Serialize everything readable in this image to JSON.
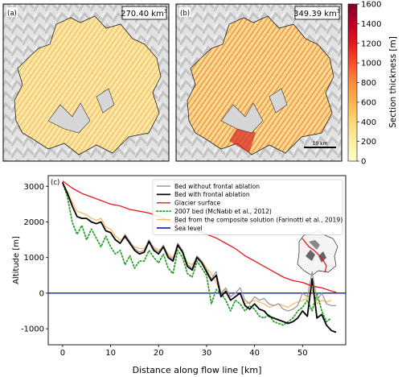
{
  "colorbar": {
    "label": "Section thickness [m]",
    "ticks": [
      0,
      200,
      400,
      600,
      800,
      1000,
      1200,
      1400,
      1600
    ],
    "range": [
      0,
      1600
    ],
    "colors": [
      "#ffffcc",
      "#ffeda0",
      "#fed976",
      "#feb24c",
      "#fd8d3c",
      "#fc4e2a",
      "#e31a1c",
      "#bd0026",
      "#800026"
    ]
  },
  "maps": [
    {
      "panel": "(a)",
      "volume": "270.40 km",
      "volume_sup": "3",
      "mean_thickness_shown": 400
    },
    {
      "panel": "(b)",
      "volume": "349.39 km",
      "volume_sup": "3",
      "mean_thickness_shown": 600,
      "scalebar": "10 km"
    }
  ],
  "chart_data": {
    "type": "line",
    "panel": "(c)",
    "xlabel": "Distance along flow line [km]",
    "ylabel": "Altitude [m]",
    "xlim": [
      -3,
      59
    ],
    "ylim": [
      -1450,
      3300
    ],
    "xticks": [
      0,
      10,
      20,
      30,
      40,
      50
    ],
    "yticks": [
      -1000,
      0,
      1000,
      2000,
      3000
    ],
    "legend_position": "top-center",
    "series": [
      {
        "name": "Bed without frontal ablation",
        "color": "#999999",
        "style": "solid",
        "x": [
          0,
          1,
          2,
          3,
          4,
          5,
          6,
          7,
          8,
          9,
          10,
          11,
          12,
          13,
          14,
          15,
          16,
          17,
          18,
          19,
          20,
          21,
          22,
          23,
          24,
          25,
          26,
          27,
          28,
          29,
          30,
          31,
          32,
          33,
          34,
          35,
          36,
          37,
          38,
          39,
          40,
          41,
          42,
          43,
          44,
          45,
          46,
          47,
          48,
          49,
          50,
          51,
          52,
          53,
          54,
          55,
          56,
          57
        ],
        "y": [
          3100,
          2800,
          2450,
          2150,
          2100,
          2100,
          2000,
          1950,
          2000,
          1750,
          1700,
          1500,
          1400,
          1650,
          1450,
          1250,
          1150,
          1200,
          1500,
          1250,
          1150,
          1350,
          1050,
          950,
          1400,
          1200,
          800,
          700,
          1050,
          900,
          650,
          400,
          600,
          0,
          150,
          -100,
          0,
          150,
          -200,
          -300,
          -100,
          -200,
          -150,
          -300,
          -350,
          -300,
          -450,
          -500,
          -450,
          -350,
          0,
          -100,
          600,
          -200,
          0,
          -300,
          -350,
          -350
        ]
      },
      {
        "name": "Bed with frontal ablation",
        "color": "#000000",
        "style": "solid",
        "x": [
          0,
          1,
          2,
          3,
          4,
          5,
          6,
          7,
          8,
          9,
          10,
          11,
          12,
          13,
          14,
          15,
          16,
          17,
          18,
          19,
          20,
          21,
          22,
          23,
          24,
          25,
          26,
          27,
          28,
          29,
          30,
          31,
          32,
          33,
          34,
          35,
          36,
          37,
          38,
          39,
          40,
          41,
          42,
          43,
          44,
          45,
          46,
          47,
          48,
          49,
          50,
          51,
          52,
          53,
          54,
          55,
          56,
          57
        ],
        "y": [
          3100,
          2800,
          2450,
          2150,
          2100,
          2100,
          2000,
          1950,
          2000,
          1750,
          1700,
          1500,
          1400,
          1600,
          1400,
          1200,
          1100,
          1150,
          1450,
          1200,
          1100,
          1300,
          1000,
          900,
          1350,
          1150,
          750,
          650,
          1000,
          850,
          600,
          350,
          500,
          -100,
          50,
          -200,
          -100,
          0,
          -350,
          -450,
          -300,
          -450,
          -500,
          -650,
          -700,
          -750,
          -800,
          -850,
          -800,
          -700,
          -500,
          -650,
          400,
          -700,
          -600,
          -900,
          -1050,
          -1100
        ]
      },
      {
        "name": "Glacier surface",
        "color": "#e41a1c",
        "style": "solid",
        "x": [
          0,
          2,
          4,
          6,
          8,
          10,
          12,
          14,
          16,
          18,
          20,
          22,
          24,
          26,
          28,
          30,
          32,
          34,
          36,
          38,
          40,
          42,
          44,
          46,
          48,
          50,
          52,
          54,
          56,
          57
        ],
        "y": [
          3150,
          2950,
          2800,
          2700,
          2600,
          2500,
          2450,
          2350,
          2300,
          2250,
          2150,
          2050,
          1950,
          1850,
          1750,
          1650,
          1550,
          1400,
          1250,
          1050,
          900,
          750,
          600,
          450,
          350,
          300,
          200,
          150,
          60,
          20
        ]
      },
      {
        "name": "2007 bed (McNabb et al., 2012)",
        "color": "#2ca02c",
        "style": "dotted",
        "x": [
          0,
          1,
          2,
          3,
          4,
          5,
          6,
          7,
          8,
          9,
          10,
          11,
          12,
          13,
          14,
          15,
          16,
          17,
          18,
          19,
          20,
          21,
          22,
          23,
          24,
          25,
          26,
          27,
          28,
          29,
          30,
          31,
          32,
          33,
          34,
          35,
          36,
          37,
          38,
          39,
          40,
          41,
          42,
          43,
          44,
          45,
          46,
          47,
          48,
          49,
          50,
          51,
          52,
          53,
          54,
          55,
          56
        ],
        "y": [
          3100,
          2700,
          2000,
          1650,
          1900,
          1500,
          1800,
          1550,
          1300,
          1600,
          1300,
          1100,
          1200,
          800,
          1050,
          700,
          900,
          900,
          1200,
          1000,
          850,
          1100,
          700,
          550,
          1200,
          1000,
          550,
          450,
          900,
          700,
          500,
          -300,
          100,
          0,
          -200,
          -500,
          -200,
          -300,
          -500,
          -350,
          -450,
          -650,
          -700,
          -600,
          -800,
          -850,
          -900,
          -800,
          -700,
          -500,
          -400,
          -200,
          -500,
          0,
          -500,
          -800,
          -700
        ]
      },
      {
        "name": "Bed from the composite solution (Farinotti et al., 2019)",
        "color": "#fdb863",
        "style": "solid",
        "x": [
          0,
          1,
          2,
          3,
          4,
          5,
          6,
          7,
          8,
          9,
          10,
          11,
          12,
          13,
          14,
          15,
          16,
          17,
          18,
          19,
          20,
          21,
          22,
          23,
          24,
          25,
          26,
          27,
          28,
          29,
          30,
          31,
          32,
          33,
          34,
          35,
          36,
          37,
          38,
          39,
          40,
          41,
          42,
          43,
          44,
          45,
          46,
          47,
          48,
          49,
          50,
          51,
          52,
          53,
          54,
          55,
          56
        ],
        "y": [
          3050,
          2850,
          2550,
          2300,
          2250,
          2200,
          2100,
          2050,
          2100,
          1850,
          1800,
          1600,
          1500,
          1550,
          1400,
          1300,
          1250,
          1250,
          1450,
          1300,
          1200,
          1300,
          1100,
          1000,
          1300,
          1150,
          850,
          800,
          1000,
          900,
          700,
          550,
          300,
          0,
          100,
          -200,
          -100,
          0,
          -300,
          -250,
          -200,
          -250,
          -300,
          -400,
          -350,
          -300,
          -350,
          -400,
          -300,
          -250,
          -200,
          -150,
          100,
          -300,
          -200,
          -250,
          -200
        ]
      },
      {
        "name": "Sea level",
        "color": "#0000aa",
        "style": "solid",
        "x": [
          -3,
          59
        ],
        "y": [
          0,
          0
        ]
      }
    ]
  }
}
